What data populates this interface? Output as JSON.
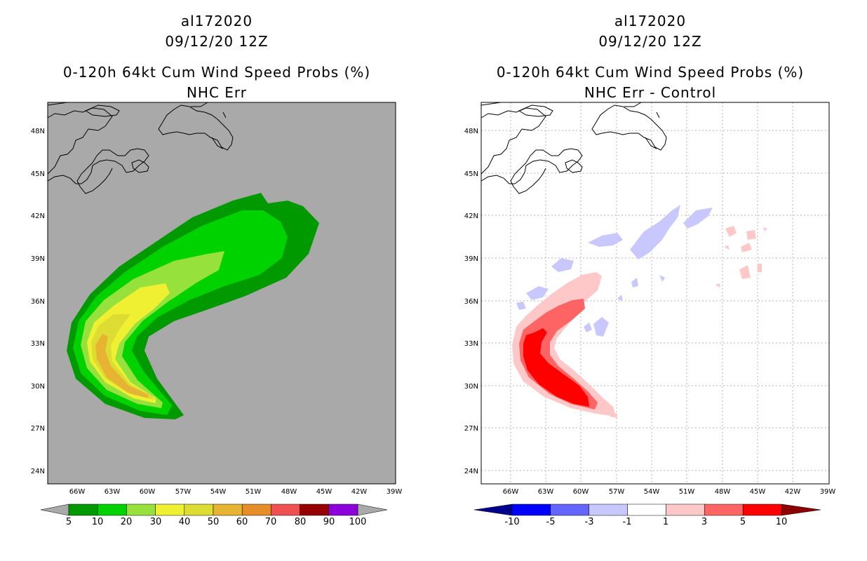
{
  "left_panel": {
    "storm_id": "al172020",
    "datetime": "09/12/20 12Z",
    "product_title": "0-120h 64kt Cum Wind Speed Probs (%)",
    "subtitle": "NHC Err",
    "background_color": "#a9a9a9",
    "colorbar": {
      "levels": [
        "5",
        "10",
        "20",
        "30",
        "40",
        "50",
        "60",
        "70",
        "80",
        "90",
        "100"
      ],
      "colors": [
        "#009a00",
        "#00d200",
        "#96e13c",
        "#f0f032",
        "#dcdc32",
        "#e6b432",
        "#e68c28",
        "#f05050",
        "#960000",
        "#8c00dc"
      ]
    }
  },
  "right_panel": {
    "storm_id": "al172020",
    "datetime": "09/12/20 12Z",
    "product_title": "0-120h 64kt Cum Wind Speed Probs (%)",
    "subtitle": "NHC Err - Control",
    "background_color": "#ffffff",
    "colorbar": {
      "levels": [
        "-10",
        "-5",
        "-3",
        "-1",
        "1",
        "3",
        "5",
        "10"
      ],
      "colors": [
        "#00008c",
        "#0000ff",
        "#6464ff",
        "#c8c8ff",
        "#ffffff",
        "#ffc8c8",
        "#ff6464",
        "#ff0000",
        "#8c0000"
      ]
    }
  },
  "axes": {
    "lat_ticks": [
      "48N",
      "45N",
      "42N",
      "39N",
      "36N",
      "33N",
      "30N",
      "27N",
      "24N"
    ],
    "lon_ticks": [
      "66W",
      "63W",
      "60W",
      "57W",
      "54W",
      "51W",
      "48W",
      "45W",
      "42W",
      "39W"
    ]
  }
}
